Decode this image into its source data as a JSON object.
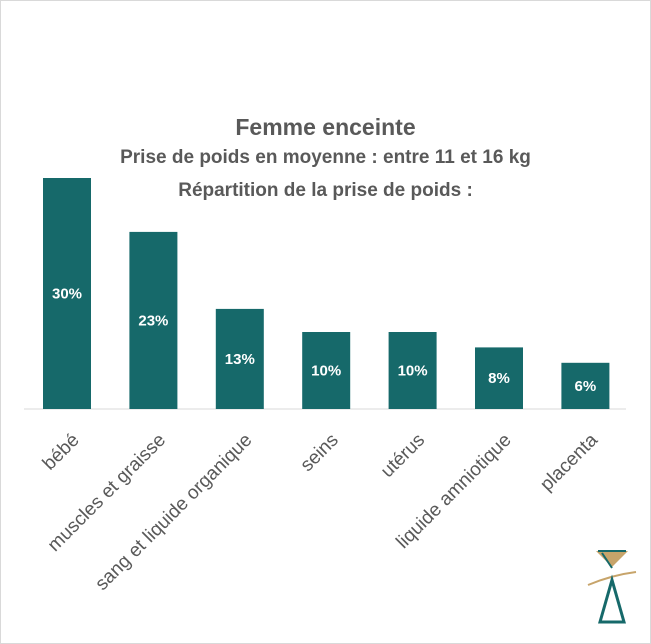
{
  "chart_data": {
    "type": "bar",
    "title": "Femme enceinte",
    "subtitle": "Prise de poids en moyenne : entre 11 et 16 kg",
    "subtitle2": "Répartition de la prise de poids :",
    "categories": [
      "bébé",
      "muscles et graisse",
      "sang et liquide organique",
      "seins",
      "utérus",
      "liquide amniotique",
      "placenta"
    ],
    "values": [
      30,
      23,
      13,
      10,
      10,
      8,
      6
    ],
    "value_labels": [
      "30%",
      "23%",
      "13%",
      "10%",
      "10%",
      "8%",
      "6%"
    ],
    "ylim": [
      0,
      30
    ],
    "grid": false,
    "legend": "none",
    "bar_color": "#16696a",
    "label_color": "#ffffff",
    "text_color": "#595959"
  },
  "logo": {
    "icon": "hourglass-logo-icon",
    "colors": [
      "#16696a",
      "#c7a46a"
    ]
  }
}
